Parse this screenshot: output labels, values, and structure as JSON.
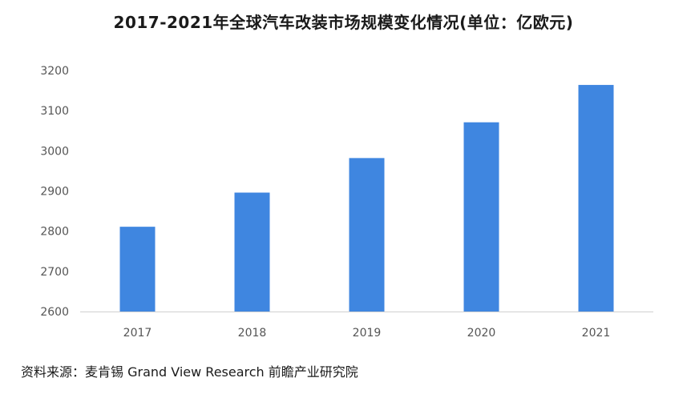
{
  "chart_data": {
    "type": "bar",
    "title": "2017-2021年全球汽车改装市场规模变化情况(单位：亿欧元)",
    "categories": [
      "2017",
      "2018",
      "2019",
      "2020",
      "2021"
    ],
    "series": [
      {
        "values": [
          2811,
          2896,
          2982,
          3071,
          3164
        ]
      }
    ],
    "ylim": [
      2600,
      3200
    ],
    "yticks": [
      2600,
      2700,
      2800,
      2900,
      3000,
      3100,
      3200
    ],
    "xlabel": "",
    "ylabel": "",
    "grid": false,
    "bar_color": "#3f86e0"
  },
  "source": "资料来源：麦肯锡 Grand View Research 前瞻产业研究院"
}
